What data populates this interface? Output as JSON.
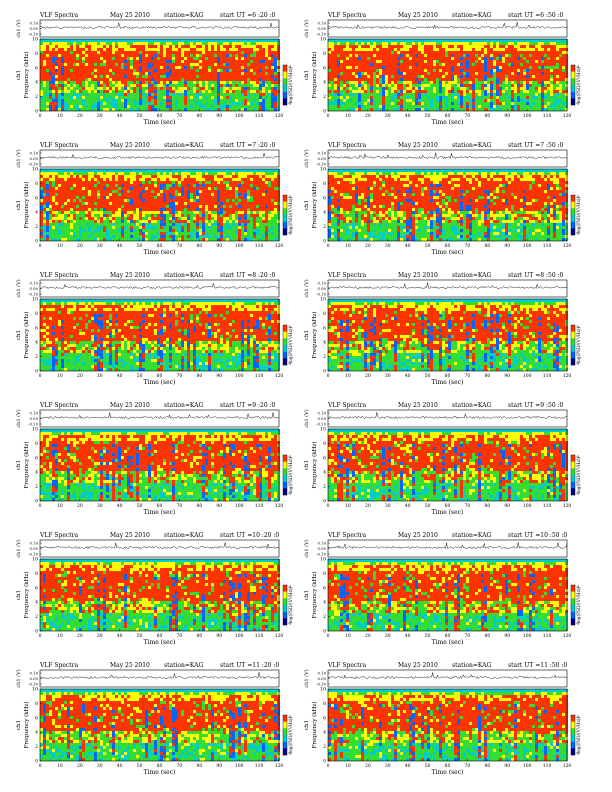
{
  "common": {
    "title_left": "VLF Spectra",
    "date": "May 25 2010",
    "station": "station=KAG",
    "start_prefix": "start  UT =",
    "top_ylabel": "ch1 (V)",
    "top_yticks": [
      "0.10",
      "0.00",
      "-0.10"
    ],
    "ylabel_left": "ch1",
    "ylabel": "Frequency (kHz)",
    "yticks": [
      "0",
      "2",
      "4",
      "6",
      "8",
      "10"
    ],
    "xticks": [
      "0",
      "10",
      "20",
      "30",
      "40",
      "50",
      "60",
      "70",
      "80",
      "90",
      "100",
      "110",
      "120"
    ],
    "xlabel": "Time (sec)",
    "cbar_label": "log(PSD/(V²/Hz))",
    "cbar_tick_top": "-5",
    "cbar_tick_bottom": "-9"
  },
  "chart_data": [
    {
      "type": "heatmap",
      "start_ut": "6 :20 :0",
      "xlim": [
        0,
        120
      ],
      "ylim": [
        0,
        10
      ],
      "colormap": [
        "#00008b",
        "#0066ff",
        "#00cccc",
        "#33dd33",
        "#ffff00",
        "#ff3300"
      ],
      "red_band_khz": [
        4,
        9
      ]
    },
    {
      "type": "heatmap",
      "start_ut": "6 :50 :0",
      "xlim": [
        0,
        120
      ],
      "ylim": [
        0,
        10
      ],
      "colormap": [
        "#00008b",
        "#0066ff",
        "#00cccc",
        "#33dd33",
        "#ffff00",
        "#ff3300"
      ],
      "red_band_khz": [
        4,
        9
      ]
    },
    {
      "type": "heatmap",
      "start_ut": "7 :20 :0",
      "xlim": [
        0,
        120
      ],
      "ylim": [
        0,
        10
      ],
      "colormap": [
        "#00008b",
        "#0066ff",
        "#00cccc",
        "#33dd33",
        "#ffff00",
        "#ff3300"
      ],
      "red_band_khz": [
        4,
        9
      ]
    },
    {
      "type": "heatmap",
      "start_ut": "7 :50 :0",
      "xlim": [
        0,
        120
      ],
      "ylim": [
        0,
        10
      ],
      "colormap": [
        "#00008b",
        "#0066ff",
        "#00cccc",
        "#33dd33",
        "#ffff00",
        "#ff3300"
      ],
      "red_band_khz": [
        4,
        9
      ]
    },
    {
      "type": "heatmap",
      "start_ut": "8 :20 :0",
      "xlim": [
        0,
        120
      ],
      "ylim": [
        0,
        10
      ],
      "colormap": [
        "#00008b",
        "#0066ff",
        "#00cccc",
        "#33dd33",
        "#ffff00",
        "#ff3300"
      ],
      "red_band_khz": [
        4,
        9
      ]
    },
    {
      "type": "heatmap",
      "start_ut": "8 :50 :0",
      "xlim": [
        0,
        120
      ],
      "ylim": [
        0,
        10
      ],
      "colormap": [
        "#00008b",
        "#0066ff",
        "#00cccc",
        "#33dd33",
        "#ffff00",
        "#ff3300"
      ],
      "red_band_khz": [
        4,
        9
      ]
    },
    {
      "type": "heatmap",
      "start_ut": "9 :20 :0",
      "xlim": [
        0,
        120
      ],
      "ylim": [
        0,
        10
      ],
      "colormap": [
        "#00008b",
        "#0066ff",
        "#00cccc",
        "#33dd33",
        "#ffff00",
        "#ff3300"
      ],
      "red_band_khz": [
        4,
        9
      ]
    },
    {
      "type": "heatmap",
      "start_ut": "9 :50 :0",
      "xlim": [
        0,
        120
      ],
      "ylim": [
        0,
        10
      ],
      "colormap": [
        "#00008b",
        "#0066ff",
        "#00cccc",
        "#33dd33",
        "#ffff00",
        "#ff3300"
      ],
      "red_band_khz": [
        4,
        9
      ]
    },
    {
      "type": "heatmap",
      "start_ut": "10 :20 :0",
      "xlim": [
        0,
        120
      ],
      "ylim": [
        0,
        10
      ],
      "colormap": [
        "#00008b",
        "#0066ff",
        "#00cccc",
        "#33dd33",
        "#ffff00",
        "#ff3300"
      ],
      "red_band_khz": [
        4,
        9
      ]
    },
    {
      "type": "heatmap",
      "start_ut": "10 :50 :0",
      "xlim": [
        0,
        120
      ],
      "ylim": [
        0,
        10
      ],
      "colormap": [
        "#00008b",
        "#0066ff",
        "#00cccc",
        "#33dd33",
        "#ffff00",
        "#ff3300"
      ],
      "red_band_khz": [
        4,
        9
      ]
    },
    {
      "type": "heatmap",
      "start_ut": "11 :20 :0",
      "xlim": [
        0,
        120
      ],
      "ylim": [
        0,
        10
      ],
      "colormap": [
        "#00008b",
        "#0066ff",
        "#00cccc",
        "#33dd33",
        "#ffff00",
        "#ff3300"
      ],
      "red_band_khz": [
        4,
        9
      ]
    },
    {
      "type": "heatmap",
      "start_ut": "11 :50 :0",
      "xlim": [
        0,
        120
      ],
      "ylim": [
        0,
        10
      ],
      "colormap": [
        "#00008b",
        "#0066ff",
        "#00cccc",
        "#33dd33",
        "#ffff00",
        "#ff3300"
      ],
      "red_band_khz": [
        4,
        9
      ]
    }
  ]
}
